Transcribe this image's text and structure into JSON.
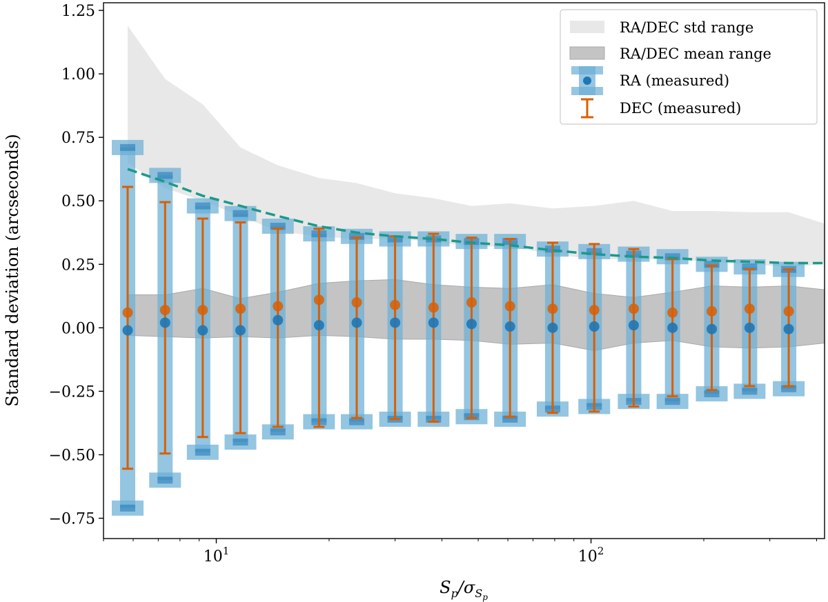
{
  "chart_data": {
    "type": "scatter",
    "title": "",
    "xlabel_main": "S",
    "xlabel_sub": "p",
    "xlabel_slash": "/σ",
    "xlabel_sub2": "S",
    "xlabel_sub3": "p",
    "ylabel": "Standard deviation (arcseconds)",
    "x_scale": "log",
    "xlim": [
      5.0,
      420
    ],
    "ylim": [
      -0.83,
      1.28
    ],
    "y_ticks": [
      1.25,
      1.0,
      0.75,
      0.5,
      0.25,
      0.0,
      -0.25,
      -0.5,
      -0.75
    ],
    "y_tick_labels": [
      "1.25",
      "1.00",
      "0.75",
      "0.50",
      "0.25",
      "0.00",
      "−0.25",
      "−0.50",
      "−0.75"
    ],
    "x_major_ticks": [
      10,
      100
    ],
    "x_major_tick_labels": [
      {
        "base": "10",
        "exp": "1"
      },
      {
        "base": "10",
        "exp": "2"
      }
    ],
    "x": [
      5.8,
      7.3,
      9.2,
      11.6,
      14.6,
      18.8,
      23.7,
      30.0,
      38.0,
      48.0,
      60.8,
      79.0,
      102.0,
      130.0,
      165.0,
      210.0,
      265.0,
      337.0
    ],
    "series": [
      {
        "name": "RA (measured)",
        "kind": "errorbar_band",
        "color": "#1f77b4",
        "band_color": "#6baed6",
        "mean": [
          -0.01,
          0.02,
          -0.01,
          -0.01,
          0.03,
          0.01,
          0.02,
          0.02,
          0.02,
          0.015,
          0.005,
          0.0,
          0.005,
          0.01,
          0.0,
          -0.005,
          0.0,
          -0.005
        ],
        "upper": [
          0.71,
          0.6,
          0.48,
          0.45,
          0.4,
          0.37,
          0.36,
          0.35,
          0.35,
          0.34,
          0.34,
          0.31,
          0.3,
          0.29,
          0.28,
          0.25,
          0.24,
          0.23
        ],
        "lower": [
          -0.71,
          -0.6,
          -0.49,
          -0.45,
          -0.41,
          -0.37,
          -0.37,
          -0.36,
          -0.36,
          -0.35,
          -0.36,
          -0.32,
          -0.31,
          -0.29,
          -0.29,
          -0.26,
          -0.25,
          -0.24
        ]
      },
      {
        "name": "DEC (measured)",
        "kind": "errorbar",
        "color": "#d95f02",
        "mean": [
          0.06,
          0.07,
          0.07,
          0.075,
          0.085,
          0.11,
          0.1,
          0.09,
          0.08,
          0.1,
          0.085,
          0.075,
          0.07,
          0.075,
          0.06,
          0.065,
          0.075,
          0.065
        ],
        "upper": [
          0.555,
          0.495,
          0.43,
          0.415,
          0.39,
          0.39,
          0.355,
          0.36,
          0.37,
          0.355,
          0.35,
          0.335,
          0.33,
          0.31,
          0.27,
          0.245,
          0.23,
          0.23
        ],
        "lower": [
          -0.555,
          -0.495,
          -0.43,
          -0.415,
          -0.39,
          -0.39,
          -0.355,
          -0.36,
          -0.37,
          -0.355,
          -0.35,
          -0.335,
          -0.33,
          -0.31,
          -0.27,
          -0.245,
          -0.23,
          -0.23
        ]
      }
    ],
    "fit_curve": {
      "name": "fit",
      "style": "dashed",
      "color": "#1a9a8a",
      "x": [
        5.8,
        7.3,
        9.2,
        11.6,
        14.6,
        18.8,
        23.7,
        30.0,
        38.0,
        48.0,
        60.8,
        79.0,
        102.0,
        130.0,
        165.0,
        210.0,
        265.0,
        337.0,
        420.0
      ],
      "y": [
        0.625,
        0.575,
        0.52,
        0.48,
        0.44,
        0.4,
        0.375,
        0.36,
        0.35,
        0.335,
        0.325,
        0.305,
        0.29,
        0.28,
        0.275,
        0.265,
        0.26,
        0.255,
        0.255
      ]
    },
    "std_range": {
      "name": "RA/DEC std range",
      "color": "#e8e8e8",
      "x": [
        5.8,
        7.3,
        9.2,
        11.6,
        14.6,
        18.8,
        23.7,
        30.0,
        38.0,
        48.0,
        60.8,
        79.0,
        102.0,
        130.0,
        165.0,
        210.0,
        265.0,
        337.0,
        420.0
      ],
      "upper": [
        1.19,
        0.98,
        0.88,
        0.71,
        0.64,
        0.59,
        0.57,
        0.53,
        0.51,
        0.48,
        0.49,
        0.47,
        0.48,
        0.5,
        0.46,
        0.46,
        0.455,
        0.455,
        0.41
      ],
      "lower": [
        0.65,
        0.55,
        0.5,
        0.44,
        0.38,
        0.36,
        0.35,
        0.35,
        0.34,
        0.32,
        0.32,
        0.29,
        0.27,
        0.27,
        0.27,
        0.26,
        0.25,
        0.24,
        0.25
      ]
    },
    "mean_range": {
      "name": "RA/DEC mean range",
      "color": "#c4c4c4",
      "x": [
        5.8,
        7.3,
        9.2,
        11.6,
        14.6,
        18.8,
        23.7,
        30.0,
        38.0,
        48.0,
        60.8,
        79.0,
        102.0,
        130.0,
        165.0,
        210.0,
        265.0,
        337.0,
        420.0
      ],
      "upper": [
        0.13,
        0.13,
        0.155,
        0.115,
        0.14,
        0.175,
        0.185,
        0.19,
        0.17,
        0.16,
        0.155,
        0.17,
        0.135,
        0.12,
        0.14,
        0.165,
        0.16,
        0.165,
        0.15
      ],
      "lower": [
        -0.03,
        -0.035,
        -0.04,
        -0.035,
        -0.04,
        -0.03,
        -0.035,
        -0.045,
        -0.045,
        -0.05,
        -0.065,
        -0.06,
        -0.09,
        -0.06,
        -0.05,
        -0.075,
        -0.08,
        -0.075,
        -0.06
      ]
    },
    "legend": {
      "position": "top-right",
      "entries": [
        {
          "label": "RA/DEC std range",
          "swatch": "std_fill"
        },
        {
          "label": "RA/DEC mean range",
          "swatch": "mean_fill"
        },
        {
          "label": "RA (measured)",
          "swatch": "ra_errorbar"
        },
        {
          "label": "DEC (measured)",
          "swatch": "dec_errorbar"
        }
      ]
    }
  }
}
